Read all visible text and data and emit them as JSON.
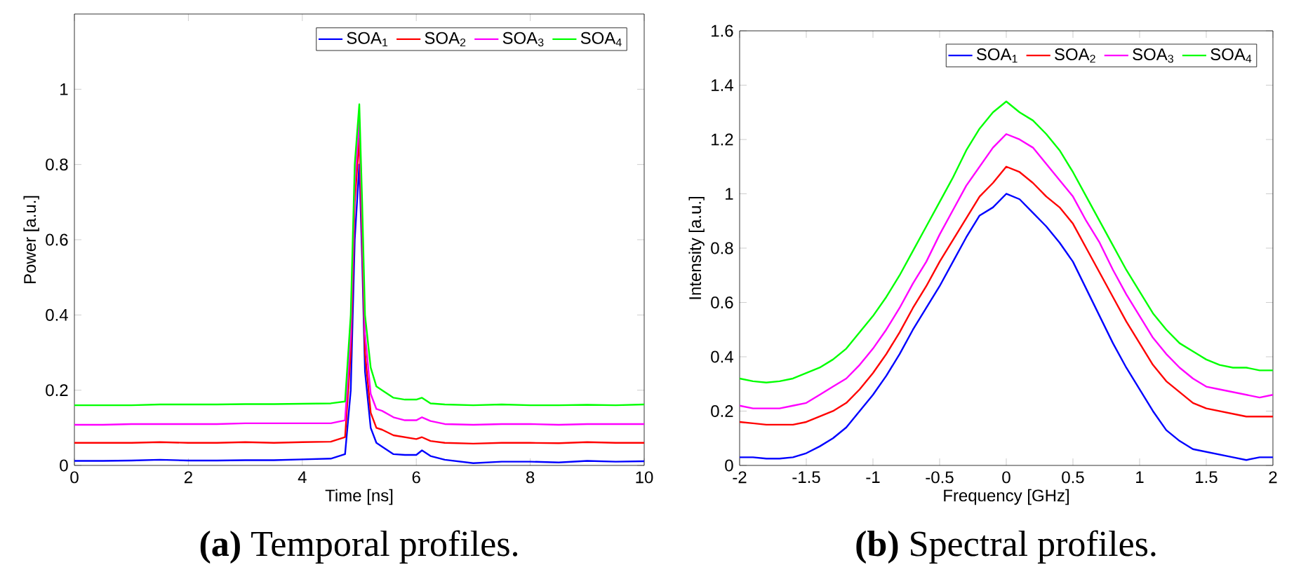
{
  "chart_data": [
    {
      "type": "line",
      "xlabel": "Time [ns]",
      "ylabel": "Power [a.u.]",
      "xlim": [
        0,
        10
      ],
      "ylim": [
        0,
        1.2
      ],
      "xticks": [
        0,
        2,
        4,
        6,
        8,
        10
      ],
      "yticks": [
        0,
        0.2,
        0.4,
        0.6,
        0.8,
        1
      ],
      "legend": "top right",
      "grid": false,
      "annotations": [
        "**(a)** Temporal profiles."
      ],
      "x": [
        0,
        0.5,
        1,
        1.5,
        2,
        2.5,
        3,
        3.5,
        4,
        4.5,
        4.75,
        4.85,
        4.92,
        5.0,
        5.05,
        5.1,
        5.2,
        5.3,
        5.4,
        5.6,
        5.8,
        6.0,
        6.1,
        6.25,
        6.5,
        7,
        7.5,
        8,
        8.5,
        9,
        9.5,
        10
      ],
      "series": [
        {
          "name": "SOA$_{1}$",
          "color": "#0000ff",
          "values": [
            0.012,
            0.012,
            0.013,
            0.015,
            0.013,
            0.013,
            0.014,
            0.014,
            0.016,
            0.018,
            0.03,
            0.2,
            0.6,
            0.8,
            0.55,
            0.25,
            0.1,
            0.06,
            0.05,
            0.03,
            0.028,
            0.028,
            0.04,
            0.025,
            0.015,
            0.006,
            0.01,
            0.01,
            0.008,
            0.012,
            0.01,
            0.011
          ]
        },
        {
          "name": "SOA$_{2}$",
          "color": "#ff0000",
          "values": [
            0.06,
            0.06,
            0.06,
            0.062,
            0.06,
            0.06,
            0.062,
            0.06,
            0.062,
            0.063,
            0.075,
            0.3,
            0.7,
            0.87,
            0.6,
            0.3,
            0.14,
            0.1,
            0.095,
            0.08,
            0.075,
            0.07,
            0.075,
            0.065,
            0.06,
            0.058,
            0.06,
            0.06,
            0.059,
            0.062,
            0.06,
            0.06
          ]
        },
        {
          "name": "SOA$_{3}$",
          "color": "#ff00ff",
          "values": [
            0.108,
            0.108,
            0.11,
            0.11,
            0.11,
            0.11,
            0.112,
            0.112,
            0.112,
            0.112,
            0.12,
            0.35,
            0.75,
            0.92,
            0.65,
            0.35,
            0.19,
            0.15,
            0.145,
            0.128,
            0.12,
            0.12,
            0.128,
            0.118,
            0.11,
            0.108,
            0.11,
            0.11,
            0.108,
            0.11,
            0.11,
            0.11
          ]
        },
        {
          "name": "SOA$_{4}$",
          "color": "#00ff00",
          "values": [
            0.16,
            0.16,
            0.16,
            0.162,
            0.162,
            0.162,
            0.163,
            0.163,
            0.164,
            0.165,
            0.17,
            0.4,
            0.8,
            0.96,
            0.7,
            0.4,
            0.26,
            0.21,
            0.2,
            0.18,
            0.175,
            0.175,
            0.18,
            0.165,
            0.162,
            0.16,
            0.162,
            0.16,
            0.16,
            0.161,
            0.16,
            0.162
          ]
        }
      ]
    },
    {
      "type": "line",
      "xlabel": "Frequency [GHz]",
      "ylabel": "Intensity [a.u.]",
      "xlim": [
        -2,
        2
      ],
      "ylim": [
        0,
        1.6
      ],
      "xticks": [
        -2,
        -1.5,
        -1,
        -0.5,
        0,
        0.5,
        1,
        1.5,
        2
      ],
      "yticks": [
        0,
        0.2,
        0.4,
        0.6,
        0.8,
        1,
        1.2,
        1.4,
        1.6
      ],
      "legend": "top right",
      "grid": false,
      "annotations": [
        "**(b)** Spectral profiles."
      ],
      "x": [
        -2,
        -1.9,
        -1.8,
        -1.7,
        -1.6,
        -1.5,
        -1.4,
        -1.3,
        -1.2,
        -1.1,
        -1,
        -0.9,
        -0.8,
        -0.7,
        -0.6,
        -0.5,
        -0.4,
        -0.3,
        -0.2,
        -0.1,
        0,
        0.1,
        0.2,
        0.3,
        0.4,
        0.5,
        0.6,
        0.7,
        0.8,
        0.9,
        1,
        1.1,
        1.2,
        1.3,
        1.4,
        1.5,
        1.6,
        1.7,
        1.8,
        1.9,
        2
      ],
      "series": [
        {
          "name": "SOA$_{1}$",
          "color": "#0000ff",
          "values": [
            0.03,
            0.03,
            0.025,
            0.025,
            0.03,
            0.045,
            0.07,
            0.1,
            0.14,
            0.2,
            0.26,
            0.33,
            0.41,
            0.5,
            0.58,
            0.66,
            0.75,
            0.84,
            0.92,
            0.95,
            1.0,
            0.98,
            0.93,
            0.88,
            0.82,
            0.75,
            0.65,
            0.55,
            0.45,
            0.36,
            0.28,
            0.2,
            0.13,
            0.09,
            0.06,
            0.05,
            0.04,
            0.03,
            0.02,
            0.03,
            0.03
          ]
        },
        {
          "name": "SOA$_{2}$",
          "color": "#ff0000",
          "values": [
            0.16,
            0.155,
            0.15,
            0.15,
            0.15,
            0.16,
            0.18,
            0.2,
            0.23,
            0.28,
            0.34,
            0.41,
            0.49,
            0.58,
            0.66,
            0.75,
            0.83,
            0.91,
            0.99,
            1.04,
            1.1,
            1.08,
            1.04,
            0.99,
            0.95,
            0.89,
            0.8,
            0.71,
            0.62,
            0.53,
            0.45,
            0.37,
            0.31,
            0.27,
            0.23,
            0.21,
            0.2,
            0.19,
            0.18,
            0.18,
            0.18
          ]
        },
        {
          "name": "SOA$_{3}$",
          "color": "#ff00ff",
          "values": [
            0.22,
            0.21,
            0.21,
            0.21,
            0.22,
            0.23,
            0.26,
            0.29,
            0.32,
            0.37,
            0.43,
            0.5,
            0.58,
            0.67,
            0.75,
            0.85,
            0.94,
            1.03,
            1.1,
            1.17,
            1.22,
            1.2,
            1.17,
            1.11,
            1.05,
            0.99,
            0.9,
            0.82,
            0.72,
            0.63,
            0.55,
            0.47,
            0.41,
            0.36,
            0.32,
            0.29,
            0.28,
            0.27,
            0.26,
            0.25,
            0.26
          ]
        },
        {
          "name": "SOA$_{4}$",
          "color": "#00ff00",
          "values": [
            0.32,
            0.31,
            0.305,
            0.31,
            0.32,
            0.34,
            0.36,
            0.39,
            0.43,
            0.49,
            0.55,
            0.62,
            0.7,
            0.79,
            0.88,
            0.97,
            1.06,
            1.16,
            1.24,
            1.3,
            1.34,
            1.3,
            1.27,
            1.22,
            1.16,
            1.08,
            0.99,
            0.9,
            0.81,
            0.72,
            0.64,
            0.56,
            0.5,
            0.45,
            0.42,
            0.39,
            0.37,
            0.36,
            0.36,
            0.35,
            0.35
          ]
        }
      ]
    }
  ]
}
